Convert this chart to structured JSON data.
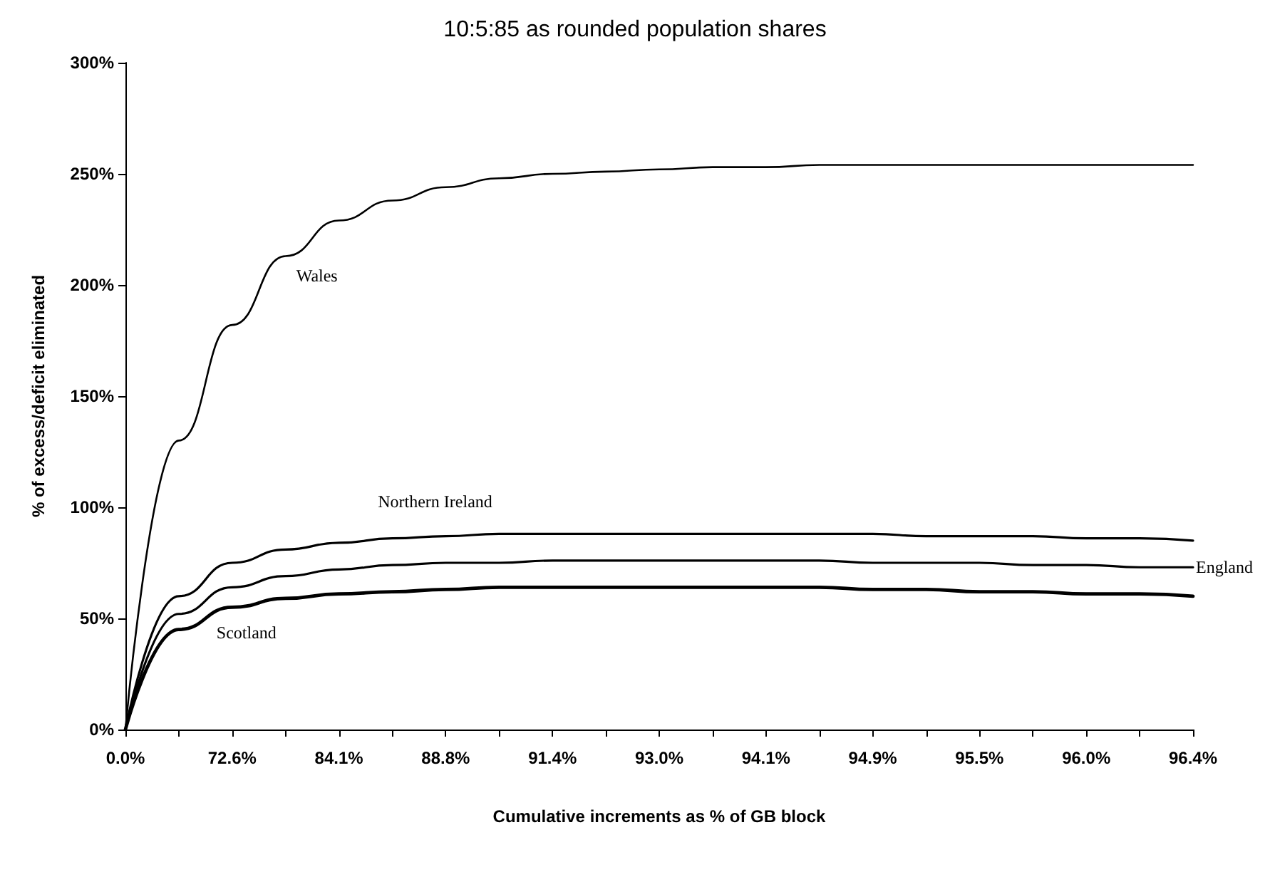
{
  "chart_data": {
    "type": "line",
    "title": "10:5:85 as rounded population shares",
    "xlabel": "Cumulative increments as % of GB block",
    "ylabel": "% of excess/deficit eliminated",
    "categories": [
      "0.0%",
      null,
      "72.6%",
      null,
      "84.1%",
      null,
      "88.8%",
      null,
      "91.4%",
      null,
      "93.0%",
      null,
      "94.1%",
      null,
      "94.9%",
      null,
      "95.5%",
      null,
      "96.0%",
      null,
      "96.4%"
    ],
    "series": [
      {
        "name": "Wales",
        "color": "#000000",
        "values": [
          0,
          130,
          182,
          213,
          229,
          238,
          244,
          248,
          250,
          251,
          252,
          253,
          253,
          254,
          254,
          254,
          254,
          254,
          254,
          254,
          254
        ]
      },
      {
        "name": "Northern Ireland",
        "color": "#000000",
        "values": [
          0,
          60,
          75,
          81,
          84,
          86,
          87,
          88,
          88,
          88,
          88,
          88,
          88,
          88,
          88,
          87,
          87,
          87,
          86,
          86,
          85
        ]
      },
      {
        "name": "England",
        "color": "#000000",
        "values": [
          0,
          52,
          64,
          69,
          72,
          74,
          75,
          75,
          76,
          76,
          76,
          76,
          76,
          76,
          75,
          75,
          75,
          74,
          74,
          73,
          73
        ]
      },
      {
        "name": "Scotland",
        "color": "#000000",
        "values": [
          0,
          45,
          55,
          59,
          61,
          62,
          63,
          64,
          64,
          64,
          64,
          64,
          64,
          64,
          63,
          63,
          62,
          62,
          61,
          61,
          60
        ]
      }
    ],
    "ylim": [
      0,
      300
    ],
    "yticks": [
      {
        "value": 0,
        "label": "0%"
      },
      {
        "value": 50,
        "label": "50%"
      },
      {
        "value": 100,
        "label": "100%"
      },
      {
        "value": 150,
        "label": "150%"
      },
      {
        "value": 200,
        "label": "200%"
      },
      {
        "value": 250,
        "label": "250%"
      },
      {
        "value": 300,
        "label": "300%"
      }
    ],
    "grid": false,
    "legend": false,
    "marker": "none",
    "line_style": "solid"
  }
}
